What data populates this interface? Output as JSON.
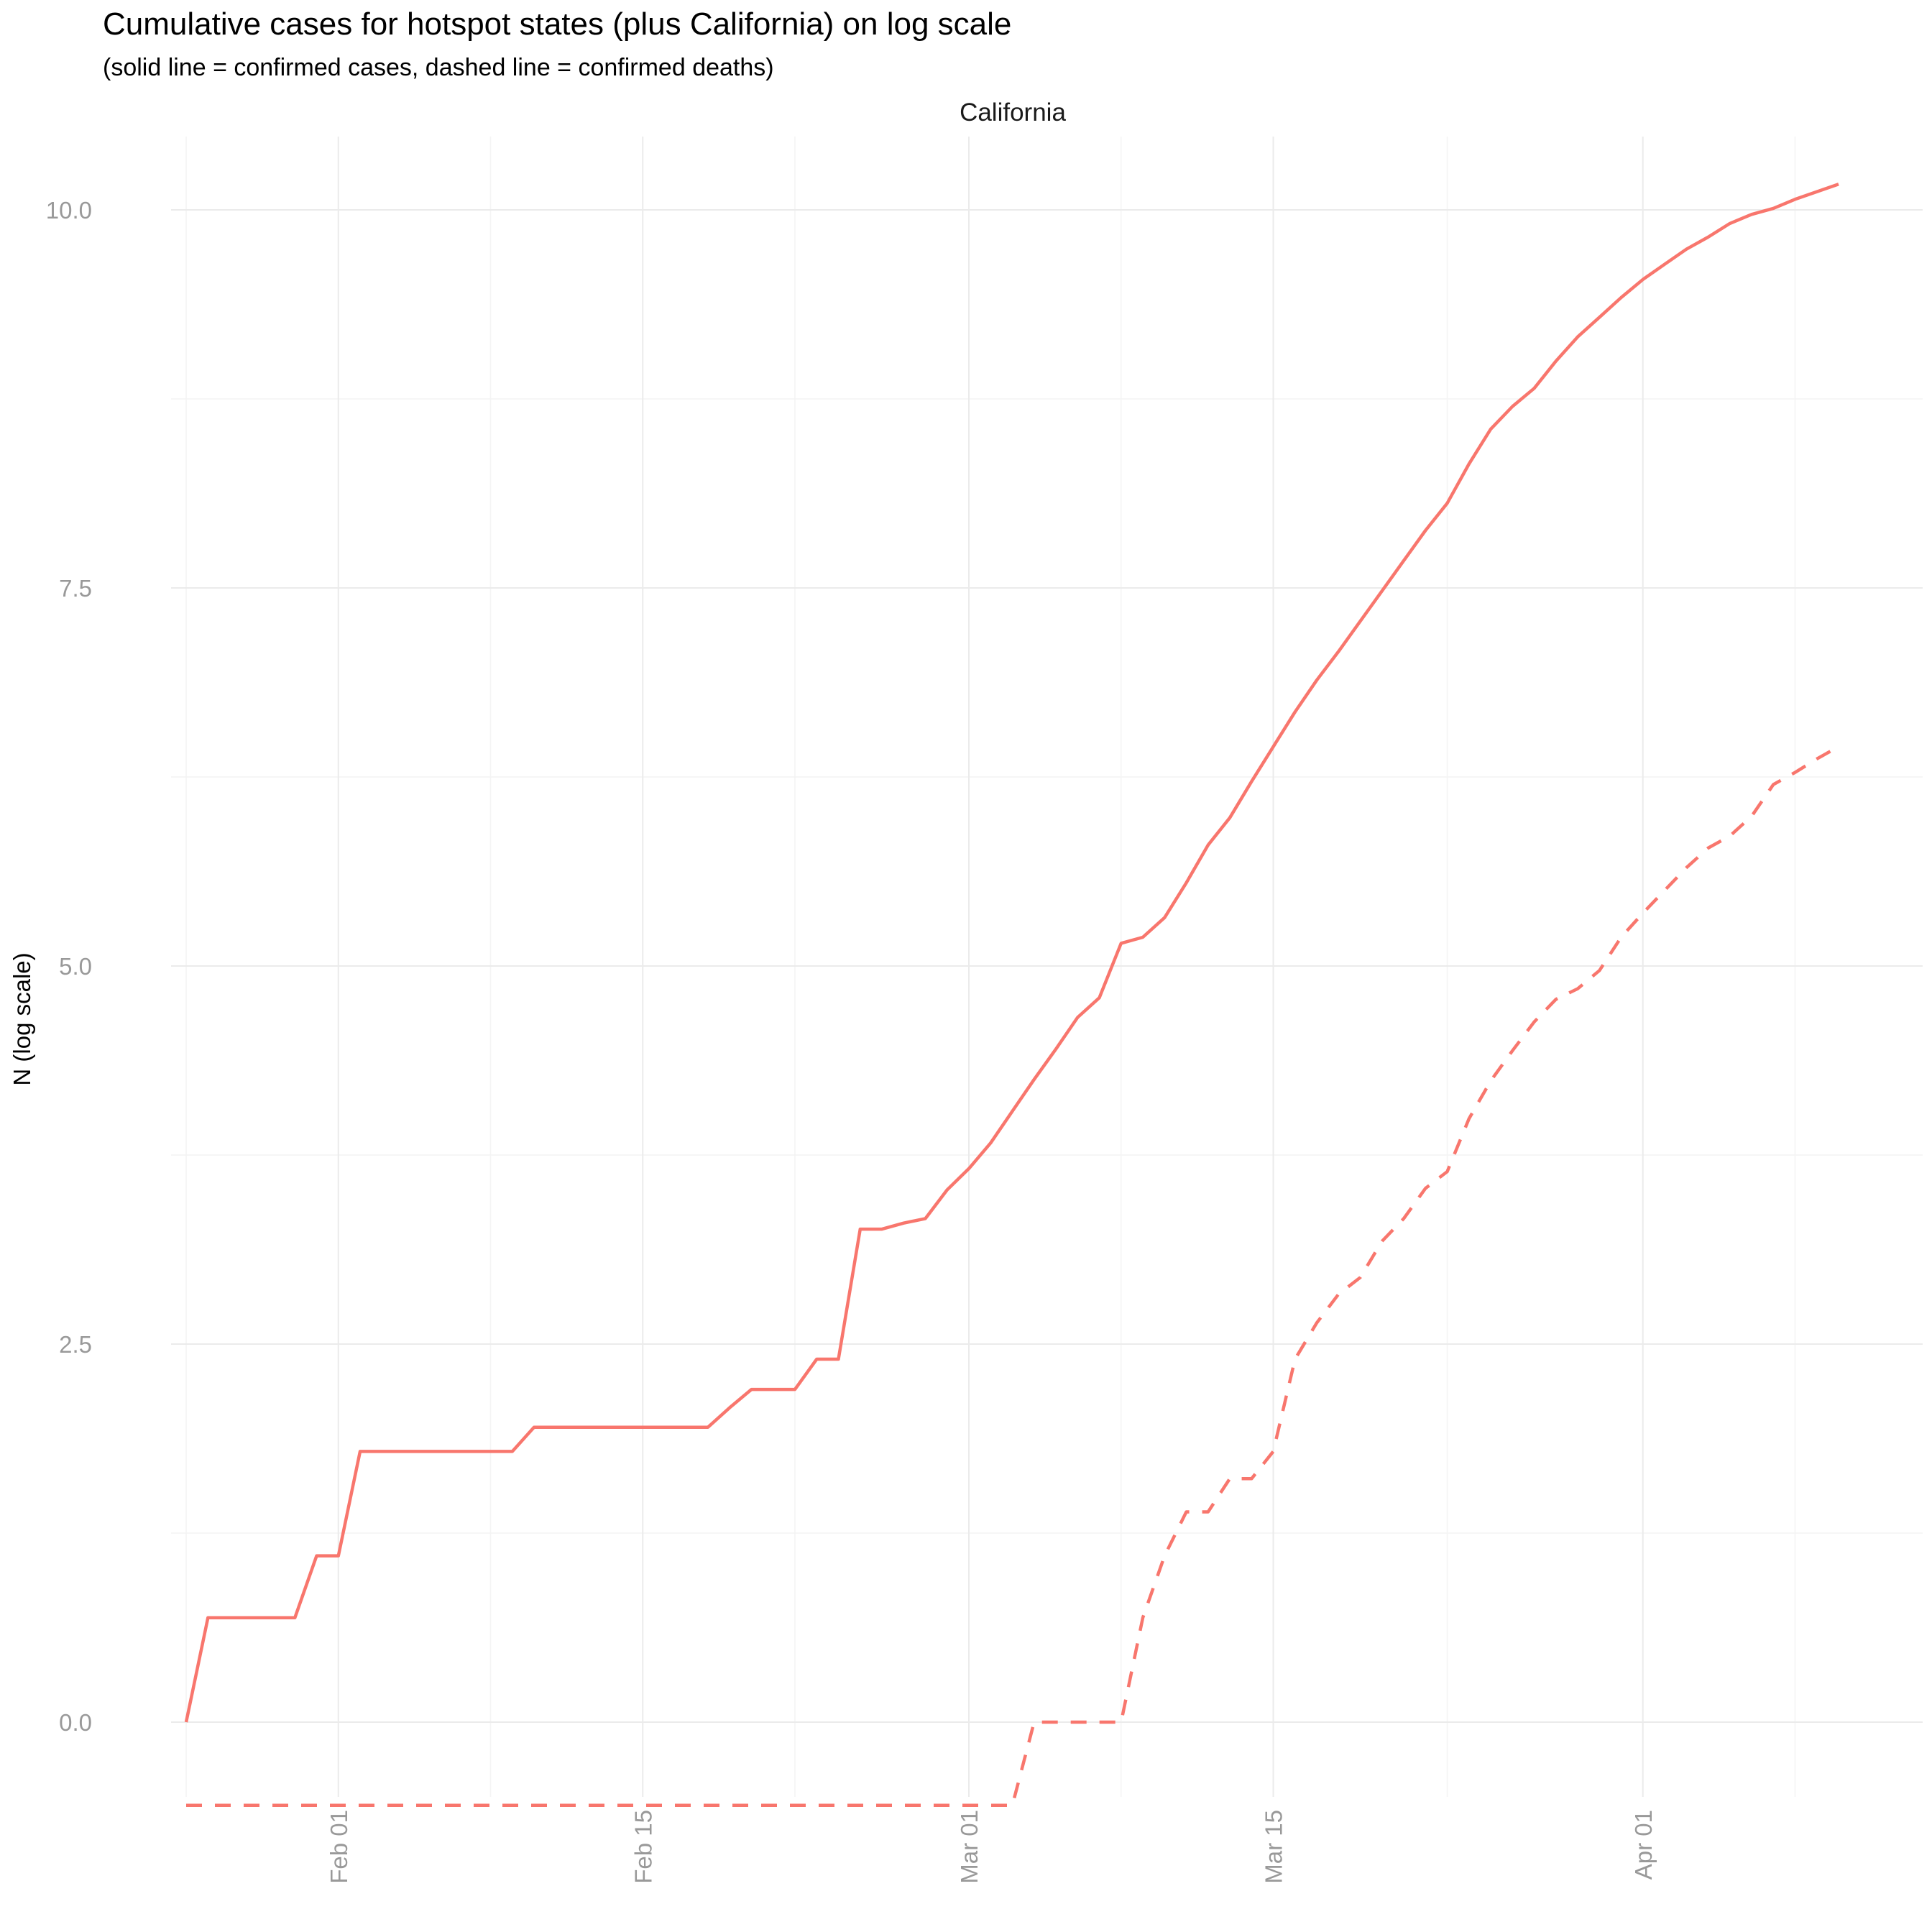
{
  "chart_data": {
    "type": "line",
    "title": "Cumulative cases for hotspot states (plus California) on log scale",
    "subtitle": "(solid line = confirmed cases, dashed line = confirmed deaths)",
    "facet_label": "California",
    "xlabel": "",
    "ylabel": "N (log scale)",
    "y_ticks": [
      "0.0",
      "2.5",
      "5.0",
      "7.5",
      "10.0"
    ],
    "y_tick_values": [
      0,
      2.5,
      5,
      7.5,
      10
    ],
    "ylim": [
      -0.6,
      10.5
    ],
    "x_ticks": [
      "Feb 01",
      "Feb 15",
      "Mar 01",
      "Mar 15",
      "Apr 01"
    ],
    "x_tick_dates": [
      "2020-02-01",
      "2020-02-15",
      "2020-03-01",
      "2020-03-15",
      "2020-04-01"
    ],
    "xlim": [
      "2020-01-24",
      "2020-04-12"
    ],
    "grid": true,
    "line_color": "#F8766D",
    "series": [
      {
        "style": "solid",
        "x": [
          "2020-01-25",
          "2020-01-26",
          "2020-01-27",
          "2020-01-28",
          "2020-01-29",
          "2020-01-30",
          "2020-01-31",
          "2020-02-01",
          "2020-02-02",
          "2020-02-03",
          "2020-02-04",
          "2020-02-05",
          "2020-02-06",
          "2020-02-07",
          "2020-02-08",
          "2020-02-09",
          "2020-02-10",
          "2020-02-11",
          "2020-02-12",
          "2020-02-13",
          "2020-02-14",
          "2020-02-15",
          "2020-02-16",
          "2020-02-17",
          "2020-02-18",
          "2020-02-19",
          "2020-02-20",
          "2020-02-21",
          "2020-02-22",
          "2020-02-23",
          "2020-02-24",
          "2020-02-25",
          "2020-02-26",
          "2020-02-27",
          "2020-02-28",
          "2020-02-29",
          "2020-03-01",
          "2020-03-02",
          "2020-03-03",
          "2020-03-04",
          "2020-03-05",
          "2020-03-06",
          "2020-03-07",
          "2020-03-08",
          "2020-03-09",
          "2020-03-10",
          "2020-03-11",
          "2020-03-12",
          "2020-03-13",
          "2020-03-14",
          "2020-03-15",
          "2020-03-16",
          "2020-03-17",
          "2020-03-18",
          "2020-03-19",
          "2020-03-20",
          "2020-03-21",
          "2020-03-22",
          "2020-03-23",
          "2020-03-24",
          "2020-03-25",
          "2020-03-26",
          "2020-03-27",
          "2020-03-28",
          "2020-03-29",
          "2020-03-30",
          "2020-03-31",
          "2020-04-01",
          "2020-04-02",
          "2020-04-03",
          "2020-04-04",
          "2020-04-05",
          "2020-04-06",
          "2020-04-07",
          "2020-04-08",
          "2020-04-09",
          "2020-04-10"
        ],
        "values": [
          0.0,
          0.69,
          0.69,
          0.69,
          0.69,
          0.69,
          1.1,
          1.1,
          1.79,
          1.79,
          1.79,
          1.79,
          1.79,
          1.79,
          1.79,
          1.79,
          1.95,
          1.95,
          1.95,
          1.95,
          1.95,
          1.95,
          1.95,
          1.95,
          1.95,
          2.08,
          2.2,
          2.2,
          2.2,
          2.4,
          2.4,
          3.26,
          3.26,
          3.3,
          3.33,
          3.52,
          3.66,
          3.83,
          4.04,
          4.25,
          4.45,
          4.66,
          4.79,
          5.15,
          5.19,
          5.32,
          5.55,
          5.8,
          5.98,
          6.22,
          6.45,
          6.68,
          6.89,
          7.08,
          7.28,
          7.48,
          7.68,
          7.88,
          8.06,
          8.32,
          8.55,
          8.7,
          8.82,
          9.0,
          9.16,
          9.29,
          9.42,
          9.54,
          9.64,
          9.74,
          9.82,
          9.91,
          9.97,
          10.01,
          10.07,
          10.12,
          10.17
        ]
      },
      {
        "style": "dashed",
        "x": [
          "2020-01-25",
          "2020-02-01",
          "2020-02-15",
          "2020-03-01",
          "2020-03-03",
          "2020-03-04",
          "2020-03-05",
          "2020-03-06",
          "2020-03-07",
          "2020-03-08",
          "2020-03-09",
          "2020-03-10",
          "2020-03-11",
          "2020-03-12",
          "2020-03-13",
          "2020-03-14",
          "2020-03-15",
          "2020-03-16",
          "2020-03-17",
          "2020-03-18",
          "2020-03-19",
          "2020-03-20",
          "2020-03-21",
          "2020-03-22",
          "2020-03-23",
          "2020-03-24",
          "2020-03-25",
          "2020-03-26",
          "2020-03-27",
          "2020-03-28",
          "2020-03-29",
          "2020-03-30",
          "2020-03-31",
          "2020-04-01",
          "2020-04-02",
          "2020-04-03",
          "2020-04-04",
          "2020-04-05",
          "2020-04-06",
          "2020-04-07",
          "2020-04-08",
          "2020-04-09",
          "2020-04-10"
        ],
        "values": [
          -0.55,
          -0.55,
          -0.55,
          -0.55,
          -0.55,
          0.0,
          0.0,
          0.0,
          0.0,
          0.0,
          0.69,
          1.1,
          1.39,
          1.39,
          1.61,
          1.61,
          1.79,
          2.4,
          2.64,
          2.83,
          2.94,
          3.18,
          3.33,
          3.53,
          3.64,
          3.99,
          4.24,
          4.44,
          4.63,
          4.78,
          4.85,
          4.97,
          5.19,
          5.35,
          5.5,
          5.65,
          5.78,
          5.86,
          5.99,
          6.2,
          6.28,
          6.37,
          6.45
        ]
      }
    ]
  }
}
